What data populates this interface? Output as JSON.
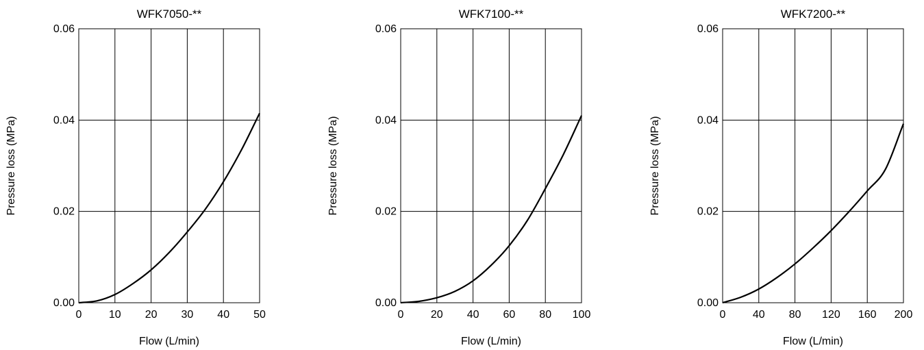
{
  "chart_data": [
    {
      "type": "line",
      "title": "WFK7050-**",
      "xlabel": "Flow (L/min)",
      "ylabel": "Pressure loss (MPa)",
      "xlim": [
        0,
        50
      ],
      "ylim": [
        0,
        0.06
      ],
      "x_ticks": [
        "0",
        "10",
        "20",
        "30",
        "40",
        "50"
      ],
      "y_ticks": [
        "0.00",
        "0.02",
        "0.04",
        "0.06"
      ],
      "grid": true,
      "series": [
        {
          "x": [
            0,
            5,
            10,
            15,
            20,
            25,
            30,
            35,
            40,
            45,
            50
          ],
          "values": [
            0,
            0.0004,
            0.0018,
            0.0042,
            0.0072,
            0.011,
            0.0155,
            0.0205,
            0.0265,
            0.0335,
            0.0415
          ]
        }
      ]
    },
    {
      "type": "line",
      "title": "WFK7100-**",
      "xlabel": "Flow (L/min)",
      "ylabel": "Pressure loss (MPa)",
      "xlim": [
        0,
        100
      ],
      "ylim": [
        0,
        0.06
      ],
      "x_ticks": [
        "0",
        "20",
        "40",
        "60",
        "80",
        "100"
      ],
      "y_ticks": [
        "0.00",
        "0.02",
        "0.04",
        "0.06"
      ],
      "grid": true,
      "series": [
        {
          "x": [
            0,
            10,
            20,
            30,
            40,
            50,
            60,
            70,
            80,
            90,
            100
          ],
          "values": [
            0,
            0.0003,
            0.0011,
            0.0025,
            0.0048,
            0.0082,
            0.0125,
            0.018,
            0.025,
            0.0325,
            0.041
          ]
        }
      ]
    },
    {
      "type": "line",
      "title": "WFK7200-**",
      "xlabel": "Flow (L/min)",
      "ylabel": "Pressure loss (MPa)",
      "xlim": [
        0,
        200
      ],
      "ylim": [
        0,
        0.06
      ],
      "x_ticks": [
        "0",
        "40",
        "80",
        "120",
        "160",
        "200"
      ],
      "y_ticks": [
        "0.00",
        "0.02",
        "0.04",
        "0.06"
      ],
      "grid": true,
      "series": [
        {
          "x": [
            0,
            20,
            40,
            60,
            80,
            100,
            120,
            140,
            160,
            180,
            200
          ],
          "values": [
            0,
            0.0012,
            0.003,
            0.0055,
            0.0085,
            0.012,
            0.0158,
            0.02,
            0.0245,
            0.0292,
            0.0392
          ]
        }
      ]
    }
  ]
}
